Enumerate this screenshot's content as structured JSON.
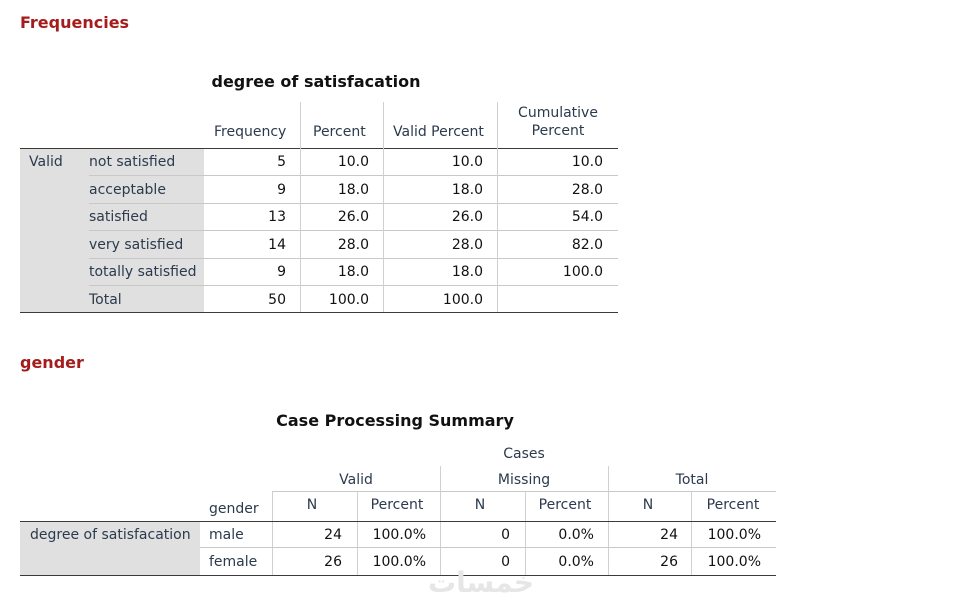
{
  "freq": {
    "heading": "Frequencies",
    "title": "degree of satisfacation",
    "col_headers": [
      "Frequency",
      "Percent",
      "Valid Percent",
      "Cumulative Percent"
    ],
    "cum_header_line1": "Cumulative",
    "cum_header_line2": "Percent",
    "group_label": "Valid",
    "rows": [
      {
        "label": "not satisfied",
        "freq": "5",
        "pct": "10.0",
        "vpct": "10.0",
        "cpct": "10.0"
      },
      {
        "label": "acceptable",
        "freq": "9",
        "pct": "18.0",
        "vpct": "18.0",
        "cpct": "28.0"
      },
      {
        "label": "satisfied",
        "freq": "13",
        "pct": "26.0",
        "vpct": "26.0",
        "cpct": "54.0"
      },
      {
        "label": "very satisfied",
        "freq": "14",
        "pct": "28.0",
        "vpct": "28.0",
        "cpct": "82.0"
      },
      {
        "label": "totally satisfied",
        "freq": "9",
        "pct": "18.0",
        "vpct": "18.0",
        "cpct": "100.0"
      },
      {
        "label": "Total",
        "freq": "50",
        "pct": "100.0",
        "vpct": "100.0",
        "cpct": ""
      }
    ]
  },
  "cps": {
    "heading": "gender",
    "title": "Case Processing Summary",
    "cases_label": "Cases",
    "groups": [
      "Valid",
      "Missing",
      "Total"
    ],
    "sub_headers": [
      "N",
      "Percent",
      "N",
      "Percent",
      "N",
      "Percent"
    ],
    "row_var_header": "gender",
    "row_group_label": "degree of satisfacation",
    "rows": [
      {
        "label": "male",
        "vals": [
          "24",
          "100.0%",
          "0",
          "0.0%",
          "24",
          "100.0%"
        ]
      },
      {
        "label": "female",
        "vals": [
          "26",
          "100.0%",
          "0",
          "0.0%",
          "26",
          "100.0%"
        ]
      }
    ]
  },
  "watermark": "خمسات"
}
